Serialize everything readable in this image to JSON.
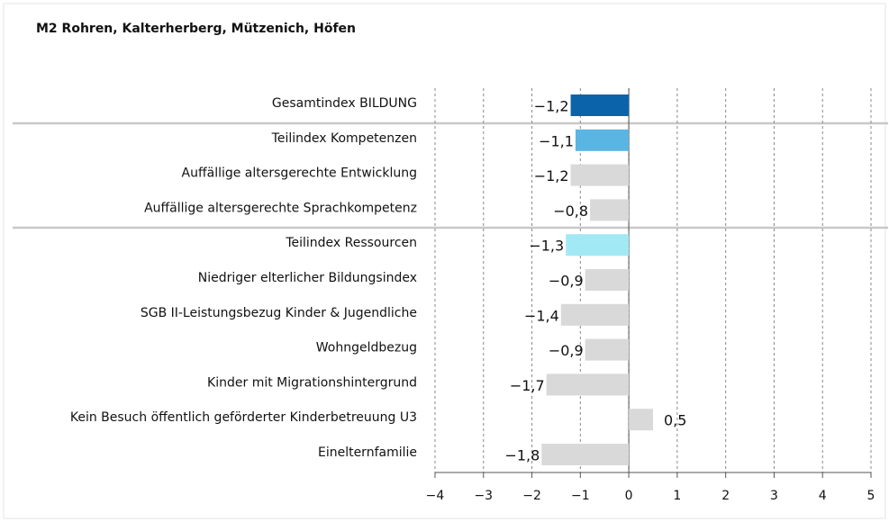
{
  "chart_data": {
    "type": "bar",
    "orientation": "horizontal",
    "title": "M2 Rohren, Kalterherberg, Mützenich, Höfen",
    "categories": [
      "Gesamtindex BILDUNG",
      "Teilindex Kompetenzen",
      "Auffällige altersgerechte Entwicklung",
      "Auffällige altersgerechte Sprachkompetenz",
      "Teilindex Ressourcen",
      "Niedriger elterlicher Bildungsindex",
      "SGB II-Leistungsbezug Kinder & Jugendliche",
      "Wohngeldbezug",
      "Kinder mit Migrationshintergrund",
      "Kein Besuch öffentlich geförderter Kinderbetreuung U3",
      "Einelternfamilie"
    ],
    "values": [
      -1.2,
      -1.1,
      -1.2,
      -0.8,
      -1.3,
      -0.9,
      -1.4,
      -0.9,
      -1.7,
      0.5,
      -1.8
    ],
    "value_labels": [
      "−1,2",
      "−1,1",
      "−1,2",
      "−0,8",
      "−1,3",
      "−0,9",
      "−1,4",
      "−0,9",
      "−1,7",
      "0,5",
      "−1,8"
    ],
    "colors": [
      "#0b64a9",
      "#5bb5e2",
      "#d9d9d9",
      "#d9d9d9",
      "#a2e9f5",
      "#d9d9d9",
      "#d9d9d9",
      "#d9d9d9",
      "#d9d9d9",
      "#d9d9d9",
      "#d9d9d9"
    ],
    "xlim": [
      -4,
      5
    ],
    "xticks": [
      {
        "value": -4,
        "label": "−4"
      },
      {
        "value": -3,
        "label": "−3"
      },
      {
        "value": -2,
        "label": "−2"
      },
      {
        "value": -1,
        "label": "−1"
      },
      0,
      1,
      2,
      3,
      4,
      5
    ],
    "grid": true
  }
}
